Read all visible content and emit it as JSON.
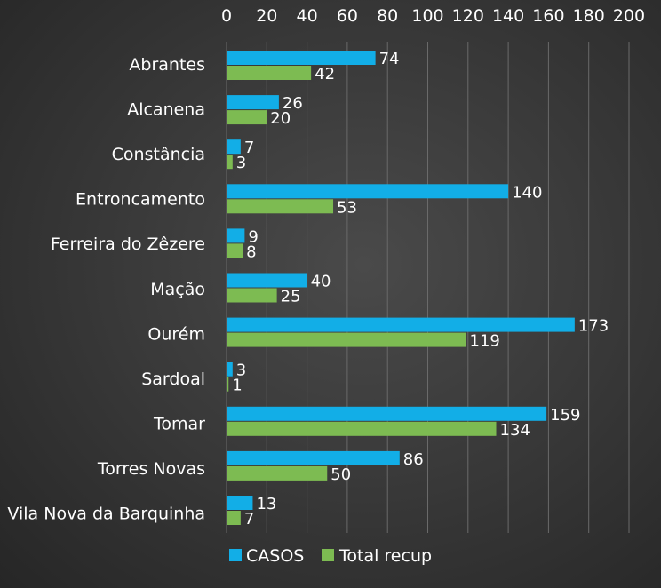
{
  "chart_data": {
    "type": "bar",
    "orientation": "horizontal",
    "title": "",
    "xlabel": "",
    "ylabel": "",
    "xlim": [
      0,
      200
    ],
    "x_ticks": [
      0,
      20,
      40,
      60,
      80,
      100,
      120,
      140,
      160,
      180,
      200
    ],
    "x_axis_position": "top",
    "grid": true,
    "legend_position": "bottom",
    "categories": [
      "Abrantes",
      "Alcanena",
      "Constância",
      "Entroncamento",
      "Ferreira do Zêzere",
      "Mação",
      "Ourém",
      "Sardoal",
      "Tomar",
      "Torres Novas",
      "Vila Nova da Barquinha"
    ],
    "series": [
      {
        "name": "CASOS",
        "color": "#12aee7",
        "values": [
          74,
          26,
          7,
          140,
          9,
          40,
          173,
          3,
          159,
          86,
          13
        ]
      },
      {
        "name": "Total recup",
        "color": "#7dbb52",
        "values": [
          42,
          20,
          3,
          53,
          8,
          25,
          119,
          1,
          134,
          50,
          7
        ]
      }
    ]
  }
}
